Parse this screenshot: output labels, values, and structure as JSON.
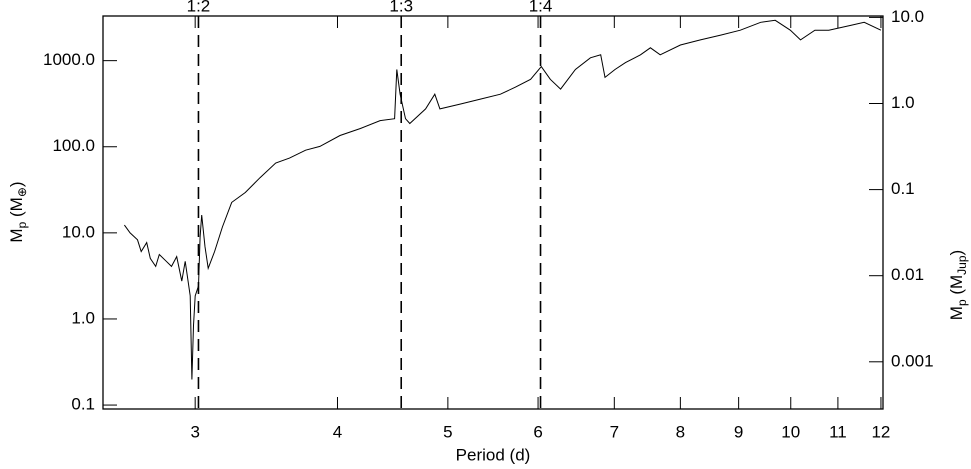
{
  "chart_data": {
    "type": "line",
    "xlabel": "Period (d)",
    "ylabel": [
      "M",
      "p",
      " (M",
      "⊕",
      ")"
    ],
    "y2label": [
      "M",
      "p",
      " (M",
      "Jup",
      ")"
    ],
    "xscale": "log",
    "yscale": "log",
    "color": "#000000",
    "xlim": [
      2.49,
      12.05
    ],
    "xticks": [
      3,
      4,
      5,
      6,
      7,
      8,
      9,
      10,
      11,
      12
    ],
    "ylim": [
      0.09,
      3300
    ],
    "yticks": [
      0.1,
      {
        "value": 1,
        "label": "1.0"
      },
      {
        "value": 10,
        "label": "10.0"
      },
      {
        "value": 100,
        "label": "100.0"
      },
      {
        "value": 1000,
        "label": "1000.0"
      }
    ],
    "y2lim": [
      0.000283,
      10.38
    ],
    "y2ticks": [
      0.001,
      0.01,
      0.1,
      {
        "value": 1,
        "label": "1.0"
      },
      {
        "value": 10,
        "label": "10.0"
      }
    ],
    "resonances": [
      {
        "label": "1:2",
        "x": 3.02
      },
      {
        "label": "1:3",
        "x": 4.55
      },
      {
        "label": "1:4",
        "x": 6.03
      }
    ],
    "x": [
      2.6,
      2.63,
      2.67,
      2.69,
      2.72,
      2.74,
      2.77,
      2.79,
      2.83,
      2.86,
      2.89,
      2.92,
      2.94,
      2.97,
      2.98,
      2.99,
      3.0,
      3.02,
      3.03,
      3.04,
      3.06,
      3.08,
      3.12,
      3.17,
      3.23,
      3.32,
      3.42,
      3.53,
      3.63,
      3.75,
      3.86,
      4.02,
      4.19,
      4.36,
      4.49,
      4.51,
      4.54,
      4.59,
      4.63,
      4.78,
      4.87,
      4.92,
      5.13,
      5.34,
      5.56,
      5.73,
      5.91,
      6.04,
      6.15,
      6.28,
      6.47,
      6.67,
      6.81,
      6.87,
      7.01,
      7.16,
      7.38,
      7.53,
      7.68,
      8.0,
      8.33,
      8.68,
      9.03,
      9.41,
      9.69,
      9.99,
      10.2,
      10.5,
      10.8,
      11.3,
      11.6,
      12.0
    ],
    "values": [
      12.3,
      10.0,
      8.3,
      6.07,
      7.7,
      5.05,
      4.08,
      5.6,
      4.67,
      4.08,
      5.3,
      2.75,
      4.67,
      1.86,
      0.198,
      0.84,
      1.86,
      2.42,
      9.0,
      16.1,
      6.9,
      3.88,
      6.07,
      11.7,
      22.6,
      29.4,
      43.7,
      64.8,
      73.9,
      91.3,
      101,
      135,
      163,
      201,
      212,
      789,
      408,
      212,
      186,
      275,
      408,
      275,
      314,
      358,
      408,
      491,
      607,
      853,
      607,
      467,
      789,
      1080,
      1170,
      639,
      789,
      948,
      1170,
      1410,
      1170,
      1520,
      1740,
      1980,
      2260,
      2790,
      2940,
      2260,
      1740,
      2260,
      2260,
      2580,
      2790,
      2260
    ]
  }
}
